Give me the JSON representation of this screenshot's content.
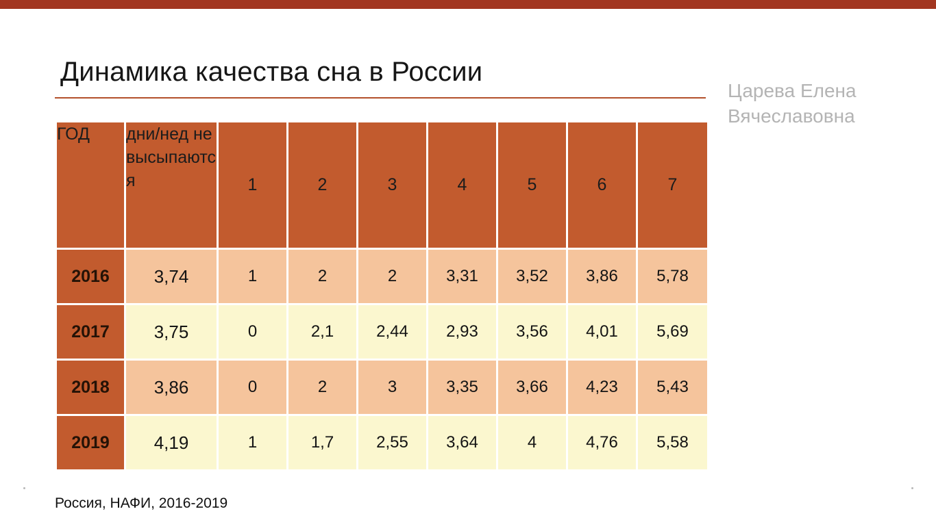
{
  "page": {
    "title": "Динамика качества сна в России",
    "author": {
      "line1": "Царева Елена",
      "line2": "Вячеславовна"
    },
    "footer": "Россия, НАФИ, 2016-2019"
  },
  "colors": {
    "top_bar": "#A23620",
    "header_bg": "#C25B2E",
    "row_peach": "#F5C49C",
    "row_yellow": "#FBF7CF",
    "divider": "#B3502A"
  },
  "chart_data": {
    "type": "table",
    "title": "Динамика качества сна в России",
    "columns": [
      "ГОД",
      "дни/нед не высыпаются",
      "1",
      "2",
      "3",
      "4",
      "5",
      "6",
      "7"
    ],
    "rows": [
      [
        "2016",
        "3,74",
        "1",
        "2",
        "2",
        "3,31",
        "3,52",
        "3,86",
        "5,78"
      ],
      [
        "2017",
        "3,75",
        "0",
        "2,1",
        "2,44",
        "2,93",
        "3,56",
        "4,01",
        "5,69"
      ],
      [
        "2018",
        "3,86",
        "0",
        "2",
        "3",
        "3,35",
        "3,66",
        "4,23",
        "5,43"
      ],
      [
        "2019",
        "4,19",
        "1",
        "1,7",
        "2,55",
        "3,64",
        "4",
        "4,76",
        "5,58"
      ]
    ],
    "layout": {
      "banded_rows": true,
      "header_position": "top",
      "year_column_highlighted": true
    }
  }
}
